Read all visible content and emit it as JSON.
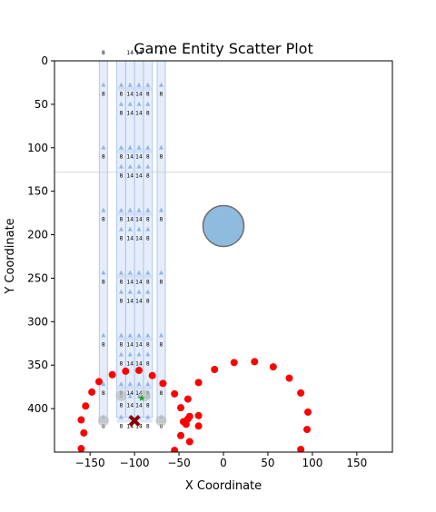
{
  "chart_data": {
    "type": "scatter",
    "title": "Game Entity Scatter Plot",
    "xlabel": "X Coordinate",
    "ylabel": "Y Coordinate",
    "xlim": [
      -190,
      190
    ],
    "ylim": [
      450,
      0
    ],
    "y_inverted": true,
    "grid": false,
    "xticks": [
      -150,
      -100,
      -50,
      0,
      50,
      100,
      150
    ],
    "yticks": [
      0,
      50,
      100,
      150,
      200,
      250,
      300,
      350,
      400
    ],
    "hline": {
      "y": 128,
      "color": "#d9d9d9"
    },
    "columns": [
      {
        "x": -135,
        "y_start": 0,
        "y_end": 415,
        "label": "8"
      },
      {
        "x": -115,
        "y_start": 0,
        "y_end": 410,
        "label": "8"
      },
      {
        "x": -105,
        "y_start": 0,
        "y_end": 410,
        "label": "14"
      },
      {
        "x": -95,
        "y_start": 0,
        "y_end": 410,
        "label": "14"
      },
      {
        "x": -85,
        "y_start": 0,
        "y_end": 410,
        "label": "8"
      },
      {
        "x": -70,
        "y_start": 0,
        "y_end": 415,
        "label": "8"
      }
    ],
    "column_label_rows": [
      -8,
      32,
      54,
      104,
      126,
      176,
      198,
      248,
      270,
      320,
      342,
      376,
      390,
      414
    ],
    "large_circle": {
      "x": 0,
      "y": 190,
      "r": 23,
      "color": "#8fbbdf"
    },
    "red_points": [
      [
        -160,
        446
      ],
      [
        -157,
        428
      ],
      [
        -160,
        413
      ],
      [
        -155,
        397
      ],
      [
        -148,
        381
      ],
      [
        -140,
        369
      ],
      [
        -125,
        361
      ],
      [
        -110,
        357
      ],
      [
        -95,
        356
      ],
      [
        -80,
        362
      ],
      [
        -68,
        371
      ],
      [
        -55,
        383
      ],
      [
        -48,
        399
      ],
      [
        -40,
        389
      ],
      [
        -45,
        415
      ],
      [
        -40,
        412
      ],
      [
        -42,
        418
      ],
      [
        -38,
        409
      ],
      [
        -28,
        408
      ],
      [
        -28,
        420
      ],
      [
        -38,
        438
      ],
      [
        -48,
        431
      ],
      [
        -55,
        448
      ],
      [
        -28,
        370
      ],
      [
        -10,
        355
      ],
      [
        12,
        347
      ],
      [
        35,
        346
      ],
      [
        56,
        352
      ],
      [
        74,
        365
      ],
      [
        87,
        382
      ],
      [
        95,
        404
      ],
      [
        94,
        424
      ],
      [
        87,
        447
      ]
    ],
    "red_color": "#ff0000",
    "marker_x": {
      "x": -100,
      "y": 414,
      "color": "#8b0000"
    },
    "marker_star": {
      "x": -92,
      "y": 388,
      "color": "#2ca02c"
    },
    "gray_circles": [
      [
        -135,
        414
      ],
      [
        -115,
        385
      ],
      [
        -88,
        385
      ],
      [
        -70,
        414
      ]
    ]
  }
}
